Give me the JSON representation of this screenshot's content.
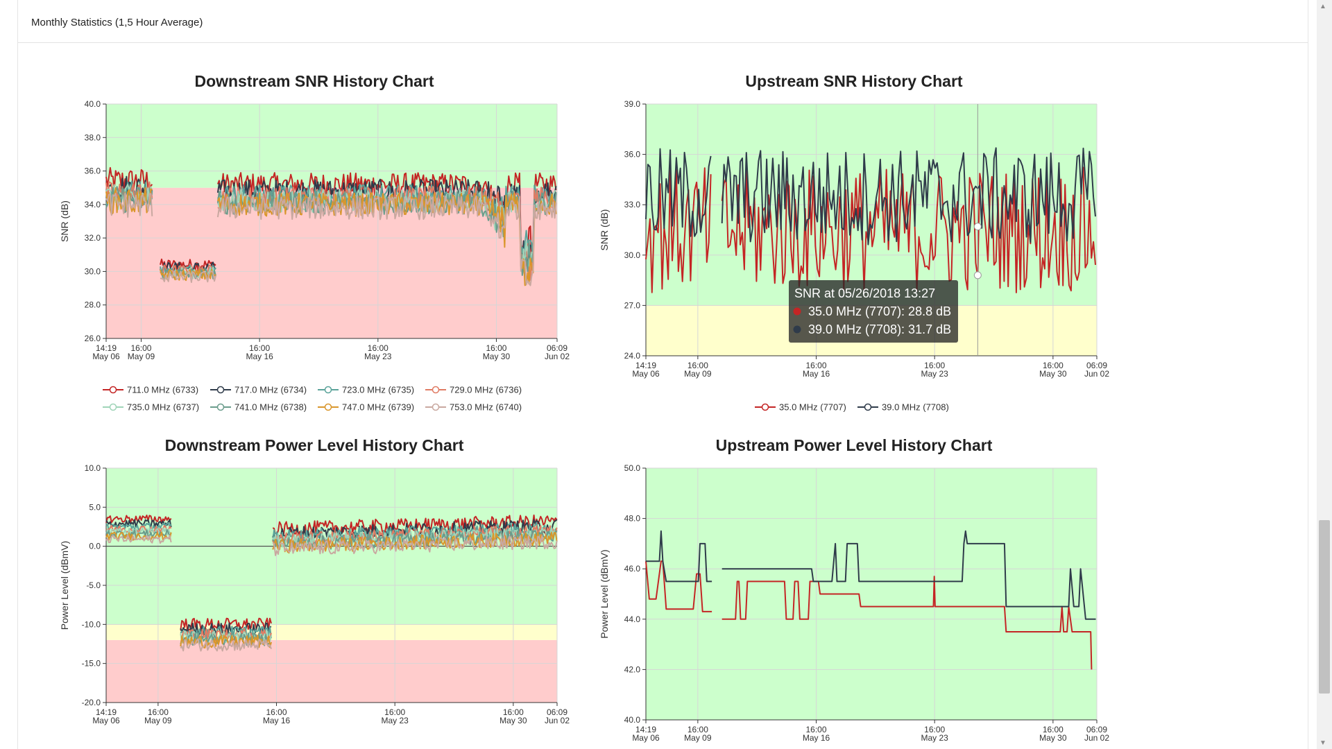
{
  "panel": {
    "title": "Monthly Statistics (1,5 Hour Average)"
  },
  "chart_data": [
    {
      "id": "ds-snr",
      "type": "line",
      "title": "Downstream SNR History Chart",
      "ylabel": "SNR (dB)",
      "ylim": [
        26,
        40
      ],
      "yticks": [
        26,
        28,
        30,
        32,
        34,
        36,
        38,
        40
      ],
      "ydecimals": 1,
      "x_ticks": [
        {
          "t": 0,
          "l1": "14:19",
          "l2": "May 06"
        },
        {
          "t": 2.0705,
          "l1": "16:00",
          "l2": "May 09"
        },
        {
          "t": 9.0705,
          "l1": "16:00",
          "l2": "May 16"
        },
        {
          "t": 16.0705,
          "l1": "16:00",
          "l2": "May 23"
        },
        {
          "t": 23.0705,
          "l1": "16:00",
          "l2": "May 30"
        },
        {
          "t": 26.6604,
          "l1": "06:09",
          "l2": "Jun 02"
        }
      ],
      "bands": [
        {
          "from": 26,
          "to": 35,
          "color": "#ffcccc"
        },
        {
          "from": 35,
          "to": 40,
          "color": "#ccffcc"
        }
      ],
      "series": [
        {
          "name": "711.0 MHz (6733)",
          "color": "#c42525",
          "base": 35.4,
          "off": 0.0
        },
        {
          "name": "717.0 MHz (6734)",
          "color": "#2f3b4a",
          "base": 35.0,
          "off": -0.3
        },
        {
          "name": "723.0 MHz (6735)",
          "color": "#5aa39a",
          "base": 34.7,
          "off": -0.5
        },
        {
          "name": "729.0 MHz (6736)",
          "color": "#e07b63",
          "base": 34.6,
          "off": -0.6
        },
        {
          "name": "735.0 MHz (6737)",
          "color": "#9fd4b8",
          "base": 34.4,
          "off": -0.8
        },
        {
          "name": "741.0 MHz (6738)",
          "color": "#6a9c8c",
          "base": 34.3,
          "off": -0.9
        },
        {
          "name": "747.0 MHz (6739)",
          "color": "#d9962b",
          "base": 34.2,
          "off": -1.0
        },
        {
          "name": "753.0 MHz (6740)",
          "color": "#c9a8a0",
          "base": 34.0,
          "off": -1.2
        }
      ]
    },
    {
      "id": "us-snr",
      "type": "line",
      "title": "Upstream SNR History Chart",
      "ylabel": "SNR (dB)",
      "ylim": [
        24,
        39
      ],
      "yticks": [
        24,
        27,
        30,
        33,
        36,
        39
      ],
      "ydecimals": 1,
      "x_ticks": [
        {
          "t": 0,
          "l1": "14:19",
          "l2": "May 06"
        },
        {
          "t": 3.0705,
          "l1": "16:00",
          "l2": "May 09"
        },
        {
          "t": 10.0705,
          "l1": "16:00",
          "l2": "May 16"
        },
        {
          "t": 17.0705,
          "l1": "16:00",
          "l2": "May 23"
        },
        {
          "t": 24.0705,
          "l1": "16:00",
          "l2": "May 30"
        },
        {
          "t": 26.6604,
          "l1": "06:09",
          "l2": "Jun 02"
        }
      ],
      "bands": [
        {
          "from": 24,
          "to": 27,
          "color": "#ffffcc"
        },
        {
          "from": 27,
          "to": 39,
          "color": "#ccffcc"
        }
      ],
      "series": [
        {
          "name": "35.0 MHz (7707)",
          "color": "#c42525"
        },
        {
          "name": "39.0 MHz (7708)",
          "color": "#2f3b4a"
        }
      ],
      "tooltip": {
        "title": "SNR at 05/26/2018 13:27",
        "rows": [
          {
            "color": "#c42525",
            "text": "35.0 MHz (7707): 28.8 dB"
          },
          {
            "color": "#2f3b4a",
            "text": "39.0 MHz (7708): 31.7 dB"
          }
        ]
      }
    },
    {
      "id": "ds-power",
      "type": "line",
      "title": "Downstream Power Level History Chart",
      "ylabel": "Power Level (dBmV)",
      "ylim": [
        -20,
        10
      ],
      "yticks": [
        -20,
        -15,
        -10,
        -5,
        0,
        5,
        10
      ],
      "ydecimals": 1,
      "x_ticks": [
        {
          "t": 0,
          "l1": "14:19",
          "l2": "May 06"
        },
        {
          "t": 3.0705,
          "l1": "16:00",
          "l2": "May 09"
        },
        {
          "t": 10.0705,
          "l1": "16:00",
          "l2": "May 16"
        },
        {
          "t": 17.0705,
          "l1": "16:00",
          "l2": "May 23"
        },
        {
          "t": 24.0705,
          "l1": "16:00",
          "l2": "May 30"
        },
        {
          "t": 26.6604,
          "l1": "06:09",
          "l2": "Jun 02"
        }
      ],
      "bands": [
        {
          "from": -20,
          "to": -12,
          "color": "#ffcccc"
        },
        {
          "from": -12,
          "to": -10,
          "color": "#ffffcc"
        },
        {
          "from": -10,
          "to": 10,
          "color": "#ccffcc"
        }
      ],
      "series": [
        {
          "name": "711.0 MHz (6733)",
          "color": "#c42525"
        },
        {
          "name": "717.0 MHz (6734)",
          "color": "#2f3b4a"
        },
        {
          "name": "723.0 MHz (6735)",
          "color": "#5aa39a"
        },
        {
          "name": "729.0 MHz (6736)",
          "color": "#e07b63"
        },
        {
          "name": "735.0 MHz (6737)",
          "color": "#9fd4b8"
        },
        {
          "name": "741.0 MHz (6738)",
          "color": "#6a9c8c"
        },
        {
          "name": "747.0 MHz (6739)",
          "color": "#d9962b"
        },
        {
          "name": "753.0 MHz (6740)",
          "color": "#c9a8a0"
        }
      ]
    },
    {
      "id": "us-power",
      "type": "line",
      "title": "Upstream Power Level History Chart",
      "ylabel": "Power Level (dBmV)",
      "ylim": [
        40,
        50
      ],
      "yticks": [
        40,
        42,
        44,
        46,
        48,
        50
      ],
      "ydecimals": 1,
      "x_ticks": [
        {
          "t": 0,
          "l1": "14:19",
          "l2": "May 06"
        },
        {
          "t": 3.0705,
          "l1": "16:00",
          "l2": "May 09"
        },
        {
          "t": 10.0705,
          "l1": "16:00",
          "l2": "May 16"
        },
        {
          "t": 17.0705,
          "l1": "16:00",
          "l2": "May 23"
        },
        {
          "t": 24.0705,
          "l1": "16:00",
          "l2": "May 30"
        },
        {
          "t": 26.6604,
          "l1": "06:09",
          "l2": "Jun 02"
        }
      ],
      "bands": [
        {
          "from": 40,
          "to": 50,
          "color": "#ccffcc"
        }
      ],
      "series": [
        {
          "name": "35.0 MHz (7707)",
          "color": "#c42525",
          "points": [
            [
              0,
              46.3
            ],
            [
              0.2,
              44.8
            ],
            [
              0.6,
              44.8
            ],
            [
              0.9,
              46.3
            ],
            [
              1.0,
              46.3
            ],
            [
              1.2,
              44.4
            ],
            [
              2.8,
              44.4
            ],
            [
              3.0,
              45.8
            ],
            [
              3.2,
              45.8
            ],
            [
              3.35,
              44.3
            ],
            [
              3.9,
              44.3
            ],
            [
              null,
              null
            ],
            [
              4.5,
              44.0
            ],
            [
              5.3,
              44.0
            ],
            [
              5.4,
              45.5
            ],
            [
              5.5,
              45.5
            ],
            [
              5.6,
              44.0
            ],
            [
              5.9,
              44.0
            ],
            [
              6.0,
              45.5
            ],
            [
              8.2,
              45.5
            ],
            [
              8.3,
              44.0
            ],
            [
              8.7,
              44.0
            ],
            [
              8.8,
              45.5
            ],
            [
              9.0,
              45.5
            ],
            [
              9.1,
              44.0
            ],
            [
              9.6,
              44.0
            ],
            [
              9.7,
              45.5
            ],
            [
              10.2,
              45.5
            ],
            [
              10.3,
              45.0
            ],
            [
              12.6,
              45.0
            ],
            [
              12.7,
              44.5
            ],
            [
              17.0,
              44.5
            ],
            [
              17.05,
              45.7
            ],
            [
              17.1,
              44.5
            ],
            [
              21.2,
              44.5
            ],
            [
              21.3,
              43.5
            ],
            [
              24.5,
              43.5
            ],
            [
              24.6,
              44.5
            ],
            [
              24.7,
              43.5
            ],
            [
              24.9,
              43.5
            ],
            [
              25.0,
              44.5
            ],
            [
              25.2,
              43.5
            ],
            [
              26.3,
              43.5
            ],
            [
              26.35,
              42.0
            ]
          ]
        },
        {
          "name": "39.0 MHz (7708)",
          "color": "#2f3b4a",
          "points": [
            [
              0,
              46.3
            ],
            [
              0.8,
              46.3
            ],
            [
              0.9,
              47.5
            ],
            [
              1.0,
              46.3
            ],
            [
              1.2,
              45.5
            ],
            [
              3.1,
              45.5
            ],
            [
              3.2,
              47.0
            ],
            [
              3.5,
              47.0
            ],
            [
              3.6,
              45.5
            ],
            [
              3.9,
              45.5
            ],
            [
              null,
              null
            ],
            [
              4.5,
              46.0
            ],
            [
              9.8,
              46.0
            ],
            [
              9.9,
              45.5
            ],
            [
              11.0,
              45.5
            ],
            [
              11.2,
              47.0
            ],
            [
              11.3,
              45.5
            ],
            [
              11.8,
              45.5
            ],
            [
              11.9,
              47.0
            ],
            [
              12.5,
              47.0
            ],
            [
              12.6,
              45.5
            ],
            [
              18.7,
              45.5
            ],
            [
              18.8,
              47.0
            ],
            [
              18.9,
              47.5
            ],
            [
              19.0,
              47.0
            ],
            [
              21.2,
              47.0
            ],
            [
              21.3,
              44.5
            ],
            [
              25.0,
              44.5
            ],
            [
              25.1,
              46.0
            ],
            [
              25.3,
              44.5
            ],
            [
              25.6,
              44.5
            ],
            [
              25.7,
              46.0
            ],
            [
              26.0,
              44.0
            ],
            [
              26.6,
              44.0
            ]
          ]
        }
      ]
    }
  ]
}
